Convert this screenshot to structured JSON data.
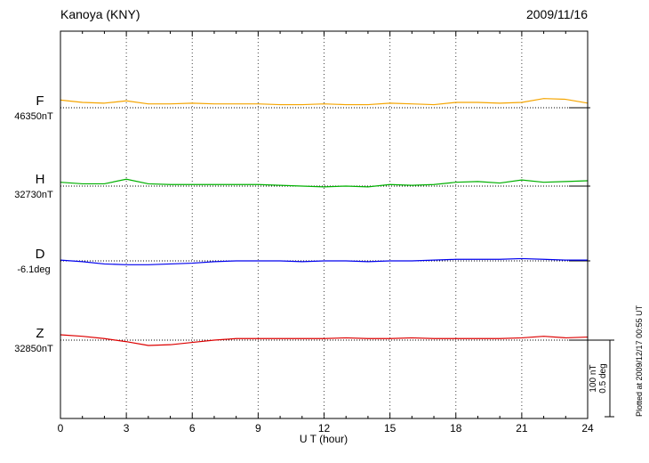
{
  "chart_data": {
    "type": "line",
    "title": "Kanoya (KNY)",
    "subtitle_date": "2009/11/16",
    "xlabel": "U T (hour)",
    "x_range": [
      0,
      24
    ],
    "x_ticks": [
      0,
      3,
      6,
      9,
      12,
      15,
      18,
      21,
      24
    ],
    "x_step_hours": 1,
    "grid": "vertical-dotted-every-3h",
    "legend_position": "left-of-plot",
    "series": [
      {
        "id": "F",
        "label": "F",
        "base_label": "46350nT",
        "base_value": 46350,
        "unit": "nT",
        "color": "#F5A500",
        "offsets": [
          10,
          7,
          6,
          9,
          5,
          5,
          6,
          5,
          5,
          5,
          4,
          4,
          5,
          4,
          4,
          6,
          5,
          4,
          7,
          7,
          6,
          7,
          12,
          11,
          6
        ]
      },
      {
        "id": "H",
        "label": "H",
        "base_label": "32730nT",
        "base_value": 32730,
        "unit": "nT",
        "color": "#00B000",
        "offsets": [
          5,
          3,
          3,
          9,
          3,
          2,
          2,
          2,
          2,
          2,
          1,
          0,
          -1,
          0,
          -1,
          2,
          1,
          2,
          5,
          6,
          4,
          8,
          5,
          6,
          7
        ]
      },
      {
        "id": "D",
        "label": "D",
        "base_label": "-6.1deg",
        "base_value": -6.1,
        "unit": "deg",
        "color": "#0000EE",
        "offsets": [
          0.005,
          -0.005,
          -0.02,
          -0.025,
          -0.025,
          -0.02,
          -0.015,
          -0.005,
          0,
          0,
          0,
          -0.005,
          0,
          0,
          -0.005,
          0,
          0,
          0.005,
          0.01,
          0.01,
          0.01,
          0.015,
          0.01,
          0.005,
          0.005
        ]
      },
      {
        "id": "Z",
        "label": "Z",
        "base_label": "32850nT",
        "base_value": 32850,
        "unit": "nT",
        "color": "#DD0000",
        "offsets": [
          7,
          5,
          2,
          -2,
          -7,
          -6,
          -3,
          0,
          2,
          2,
          2,
          2,
          2,
          3,
          2,
          2,
          3,
          2,
          2,
          2,
          2,
          3,
          5,
          3,
          4
        ]
      }
    ],
    "scale_bar": {
      "nt_label": "100 nT",
      "deg_label": "0.5 deg",
      "nt_per_bar": 100,
      "deg_per_bar": 0.5
    },
    "plotted_note": "Plotted at 2009/12/17 00:55 UT"
  }
}
